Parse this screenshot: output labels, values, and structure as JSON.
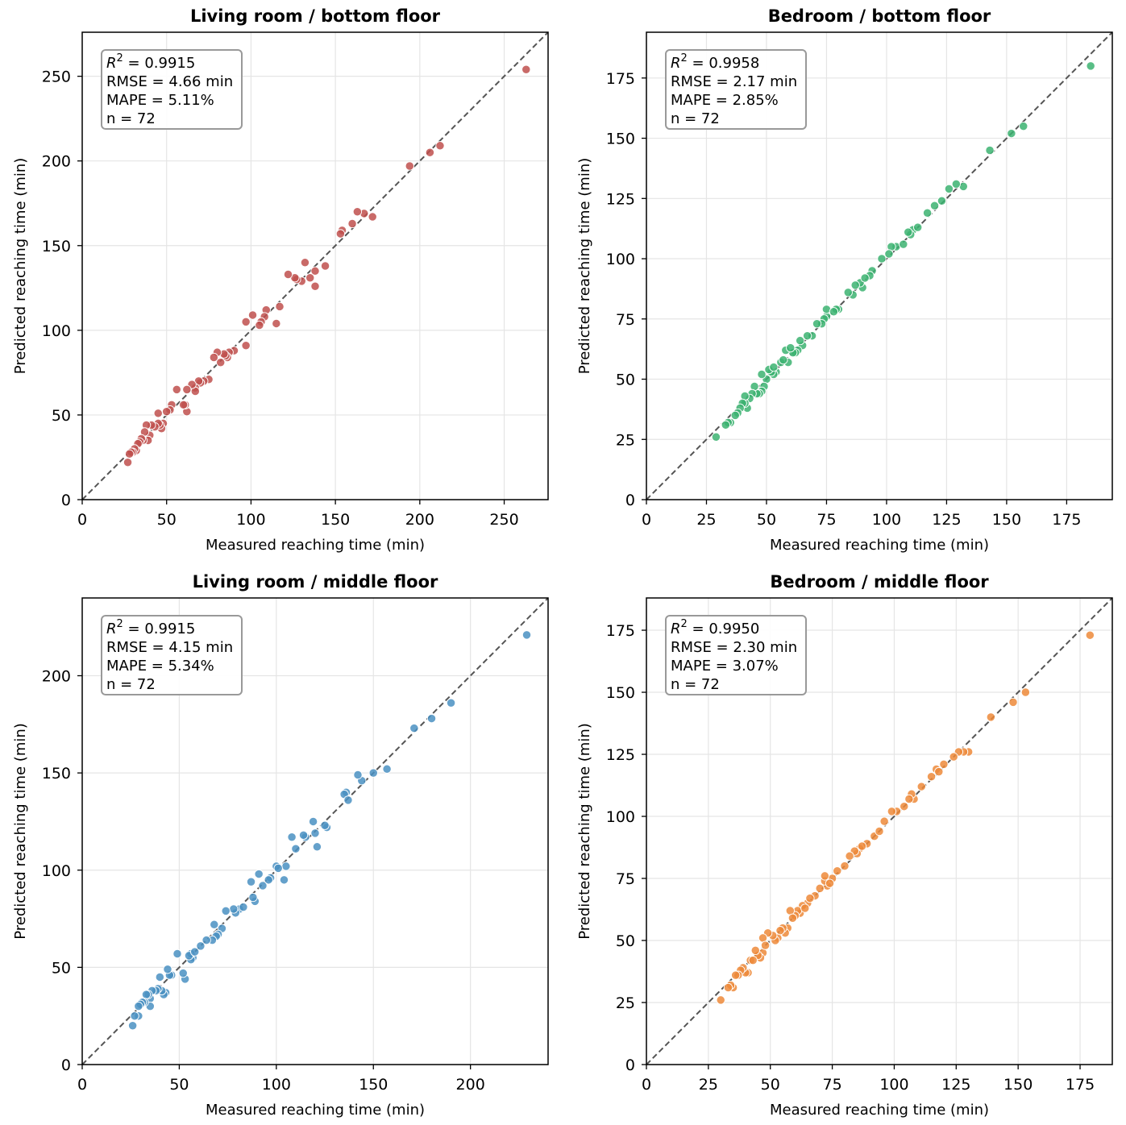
{
  "chart_data": [
    {
      "type": "scatter",
      "title": "Living room / bottom floor",
      "xlabel": "Measured reaching time (min)",
      "ylabel": "Predicted reaching time (min)",
      "xlim": [
        0,
        276
      ],
      "ylim": [
        0,
        276
      ],
      "xticks": [
        0,
        50,
        100,
        150,
        200,
        250
      ],
      "yticks": [
        0,
        50,
        100,
        150,
        200,
        250
      ],
      "grid": true,
      "reference_line": "y = x (dashed)",
      "color": "#c0504d",
      "stats": {
        "r2_symbol": "R",
        "r2_exp": "2",
        "r2": " = 0.9915",
        "rmse": "RMSE = 4.66 min",
        "mape": "MAPE = 5.11%",
        "n": "n = 72"
      },
      "points": [
        [
          263,
          254
        ],
        [
          212,
          209
        ],
        [
          206,
          205
        ],
        [
          194,
          197
        ],
        [
          172,
          167
        ],
        [
          167,
          169
        ],
        [
          163,
          170
        ],
        [
          160,
          163
        ],
        [
          154,
          159
        ],
        [
          153,
          157
        ],
        [
          144,
          138
        ],
        [
          138,
          135
        ],
        [
          138,
          126
        ],
        [
          135,
          131
        ],
        [
          132,
          140
        ],
        [
          130,
          129
        ],
        [
          127,
          130
        ],
        [
          126,
          131
        ],
        [
          122,
          133
        ],
        [
          117,
          114
        ],
        [
          115,
          104
        ],
        [
          109,
          112
        ],
        [
          108,
          108
        ],
        [
          106,
          105
        ],
        [
          105,
          103
        ],
        [
          101,
          109
        ],
        [
          97,
          105
        ],
        [
          97,
          91
        ],
        [
          90,
          88
        ],
        [
          87,
          87
        ],
        [
          86,
          84
        ],
        [
          85,
          85
        ],
        [
          84,
          86
        ],
        [
          82,
          81
        ],
        [
          80,
          87
        ],
        [
          78,
          84
        ],
        [
          75,
          71
        ],
        [
          72,
          70
        ],
        [
          70,
          69
        ],
        [
          69,
          70
        ],
        [
          67,
          66
        ],
        [
          67,
          64
        ],
        [
          65,
          68
        ],
        [
          62,
          65
        ],
        [
          62,
          52
        ],
        [
          61,
          56
        ],
        [
          60,
          56
        ],
        [
          56,
          65
        ],
        [
          53,
          56
        ],
        [
          52,
          53
        ],
        [
          50,
          52
        ],
        [
          48,
          45
        ],
        [
          47,
          42
        ],
        [
          46,
          44
        ],
        [
          45,
          45
        ],
        [
          45,
          51
        ],
        [
          43,
          43
        ],
        [
          41,
          44
        ],
        [
          40,
          38
        ],
        [
          39,
          35
        ],
        [
          38,
          44
        ],
        [
          37,
          40
        ],
        [
          36,
          35
        ],
        [
          35,
          36
        ],
        [
          34,
          34
        ],
        [
          33,
          33
        ],
        [
          32,
          29
        ],
        [
          31,
          30
        ],
        [
          30,
          28
        ],
        [
          29,
          28
        ],
        [
          28,
          27
        ],
        [
          27,
          22
        ]
      ]
    },
    {
      "type": "scatter",
      "title": "Bedroom / bottom floor",
      "xlabel": "Measured reaching time (min)",
      "ylabel": "Predicted reaching time (min)",
      "xlim": [
        0,
        194
      ],
      "ylim": [
        0,
        194
      ],
      "xticks": [
        0,
        25,
        50,
        75,
        100,
        125,
        150,
        175
      ],
      "yticks": [
        0,
        25,
        50,
        75,
        100,
        125,
        150,
        175
      ],
      "grid": true,
      "reference_line": "y = x (dashed)",
      "color": "#3cb371",
      "stats": {
        "r2_symbol": "R",
        "r2_exp": "2",
        "r2": " = 0.9958",
        "rmse": "RMSE = 2.17 min",
        "mape": "MAPE = 2.85%",
        "n": "n = 72"
      },
      "points": [
        [
          185,
          180
        ],
        [
          157,
          155
        ],
        [
          152,
          152
        ],
        [
          143,
          145
        ],
        [
          132,
          130
        ],
        [
          129,
          131
        ],
        [
          123,
          124
        ],
        [
          120,
          122
        ],
        [
          117,
          119
        ],
        [
          111,
          112
        ],
        [
          110,
          110
        ],
        [
          109,
          111
        ],
        [
          104,
          105
        ],
        [
          102,
          105
        ],
        [
          101,
          102
        ],
        [
          98,
          100
        ],
        [
          94,
          95
        ],
        [
          93,
          93
        ],
        [
          90,
          88
        ],
        [
          89,
          90
        ],
        [
          87,
          89
        ],
        [
          86,
          85
        ],
        [
          84,
          86
        ],
        [
          80,
          79
        ],
        [
          79,
          79
        ],
        [
          75,
          76
        ],
        [
          75,
          79
        ],
        [
          74,
          75
        ],
        [
          73,
          73
        ],
        [
          71,
          73
        ],
        [
          69,
          68
        ],
        [
          65,
          64
        ],
        [
          64,
          66
        ],
        [
          63,
          62
        ],
        [
          62,
          61
        ],
        [
          61,
          61
        ],
        [
          59,
          57
        ],
        [
          58,
          62
        ],
        [
          56,
          57
        ],
        [
          54,
          53
        ],
        [
          53,
          52
        ],
        [
          52,
          53
        ],
        [
          51,
          54
        ],
        [
          50,
          50
        ],
        [
          49,
          47
        ],
        [
          48,
          45
        ],
        [
          48,
          52
        ],
        [
          47,
          44
        ],
        [
          46,
          44
        ],
        [
          45,
          47
        ],
        [
          44,
          44
        ],
        [
          43,
          42
        ],
        [
          42,
          38
        ],
        [
          41,
          40
        ],
        [
          41,
          43
        ],
        [
          40,
          40
        ],
        [
          39,
          38
        ],
        [
          38,
          36
        ],
        [
          37,
          35
        ],
        [
          35,
          32
        ],
        [
          34,
          32
        ],
        [
          33,
          31
        ],
        [
          29,
          26
        ],
        [
          53,
          55
        ],
        [
          57,
          58
        ],
        [
          60,
          63
        ],
        [
          67,
          68
        ],
        [
          78,
          78
        ],
        [
          91,
          92
        ],
        [
          107,
          106
        ],
        [
          113,
          113
        ],
        [
          126,
          129
        ]
      ]
    },
    {
      "type": "scatter",
      "title": "Living room / middle floor",
      "xlabel": "Measured reaching time (min)",
      "ylabel": "Predicted reaching time (min)",
      "xlim": [
        0,
        240
      ],
      "ylim": [
        0,
        240
      ],
      "xticks": [
        0,
        50,
        100,
        150,
        200
      ],
      "yticks": [
        0,
        50,
        100,
        150,
        200
      ],
      "grid": true,
      "reference_line": "y = x (dashed)",
      "color": "#4a90c2",
      "stats": {
        "r2_symbol": "R",
        "r2_exp": "2",
        "r2": " = 0.9915",
        "rmse": "RMSE = 4.15 min",
        "mape": "MAPE = 5.34%",
        "n": "n = 72"
      },
      "points": [
        [
          229,
          221
        ],
        [
          190,
          186
        ],
        [
          180,
          178
        ],
        [
          171,
          173
        ],
        [
          157,
          152
        ],
        [
          150,
          150
        ],
        [
          144,
          146
        ],
        [
          142,
          149
        ],
        [
          136,
          140
        ],
        [
          135,
          139
        ],
        [
          126,
          122
        ],
        [
          125,
          123
        ],
        [
          121,
          112
        ],
        [
          120,
          119
        ],
        [
          119,
          125
        ],
        [
          115,
          117
        ],
        [
          114,
          118
        ],
        [
          108,
          117
        ],
        [
          105,
          102
        ],
        [
          104,
          95
        ],
        [
          100,
          102
        ],
        [
          97,
          96
        ],
        [
          96,
          95
        ],
        [
          91,
          98
        ],
        [
          89,
          84
        ],
        [
          88,
          86
        ],
        [
          87,
          94
        ],
        [
          81,
          80
        ],
        [
          79,
          78
        ],
        [
          78,
          80
        ],
        [
          74,
          79
        ],
        [
          72,
          70
        ],
        [
          70,
          67
        ],
        [
          69,
          66
        ],
        [
          68,
          72
        ],
        [
          67,
          64
        ],
        [
          64,
          64
        ],
        [
          57,
          55
        ],
        [
          56,
          54
        ],
        [
          56,
          57
        ],
        [
          55,
          56
        ],
        [
          53,
          44
        ],
        [
          52,
          47
        ],
        [
          49,
          57
        ],
        [
          46,
          46
        ],
        [
          45,
          46
        ],
        [
          44,
          49
        ],
        [
          43,
          37
        ],
        [
          42,
          36
        ],
        [
          41,
          38
        ],
        [
          40,
          45
        ],
        [
          39,
          39
        ],
        [
          38,
          38
        ],
        [
          36,
          38
        ],
        [
          35,
          34
        ],
        [
          35,
          30
        ],
        [
          34,
          36
        ],
        [
          33,
          36
        ],
        [
          32,
          32
        ],
        [
          31,
          32
        ],
        [
          30,
          31
        ],
        [
          29,
          30
        ],
        [
          29,
          25
        ],
        [
          27,
          25
        ],
        [
          26,
          20
        ],
        [
          58,
          58
        ],
        [
          61,
          61
        ],
        [
          83,
          81
        ],
        [
          93,
          92
        ],
        [
          101,
          101
        ],
        [
          110,
          111
        ],
        [
          137,
          136
        ]
      ]
    },
    {
      "type": "scatter",
      "title": "Bedroom / middle floor",
      "xlabel": "Measured reaching time (min)",
      "ylabel": "Predicted reaching time (min)",
      "xlim": [
        0,
        188
      ],
      "ylim": [
        0,
        188
      ],
      "xticks": [
        0,
        25,
        50,
        75,
        100,
        125,
        150,
        175
      ],
      "yticks": [
        0,
        25,
        50,
        75,
        100,
        125,
        150,
        175
      ],
      "grid": true,
      "reference_line": "y = x (dashed)",
      "color": "#ed8a3a",
      "stats": {
        "r2_symbol": "R",
        "r2_exp": "2",
        "r2": " = 0.9950",
        "rmse": "RMSE = 2.30 min",
        "mape": "MAPE = 3.07%",
        "n": "n = 72"
      },
      "points": [
        [
          179,
          173
        ],
        [
          153,
          150
        ],
        [
          148,
          146
        ],
        [
          139,
          140
        ],
        [
          130,
          126
        ],
        [
          128,
          126
        ],
        [
          126,
          126
        ],
        [
          120,
          121
        ],
        [
          117,
          119
        ],
        [
          115,
          116
        ],
        [
          108,
          107
        ],
        [
          107,
          109
        ],
        [
          106,
          107
        ],
        [
          101,
          102
        ],
        [
          99,
          102
        ],
        [
          96,
          98
        ],
        [
          92,
          92
        ],
        [
          89,
          89
        ],
        [
          86,
          87
        ],
        [
          85,
          85
        ],
        [
          84,
          86
        ],
        [
          82,
          84
        ],
        [
          77,
          78
        ],
        [
          75,
          75
        ],
        [
          73,
          72
        ],
        [
          72,
          74
        ],
        [
          72,
          76
        ],
        [
          70,
          71
        ],
        [
          65,
          65
        ],
        [
          63,
          64
        ],
        [
          62,
          61
        ],
        [
          61,
          62
        ],
        [
          60,
          60
        ],
        [
          58,
          62
        ],
        [
          57,
          55
        ],
        [
          56,
          53
        ],
        [
          55,
          55
        ],
        [
          53,
          51
        ],
        [
          52,
          50
        ],
        [
          51,
          52
        ],
        [
          49,
          53
        ],
        [
          47,
          45
        ],
        [
          47,
          51
        ],
        [
          46,
          43
        ],
        [
          45,
          44
        ],
        [
          44,
          46
        ],
        [
          42,
          42
        ],
        [
          41,
          37
        ],
        [
          40,
          37
        ],
        [
          39,
          39
        ],
        [
          38,
          38
        ],
        [
          37,
          36
        ],
        [
          35,
          31
        ],
        [
          34,
          32
        ],
        [
          33,
          31
        ],
        [
          30,
          26
        ],
        [
          54,
          54
        ],
        [
          59,
          59
        ],
        [
          64,
          63
        ],
        [
          68,
          68
        ],
        [
          74,
          73
        ],
        [
          80,
          80
        ],
        [
          87,
          88
        ],
        [
          94,
          94
        ],
        [
          104,
          104
        ],
        [
          111,
          112
        ],
        [
          118,
          118
        ],
        [
          124,
          124
        ],
        [
          66,
          67
        ],
        [
          48,
          48
        ],
        [
          43,
          42
        ],
        [
          36,
          36
        ]
      ]
    }
  ]
}
